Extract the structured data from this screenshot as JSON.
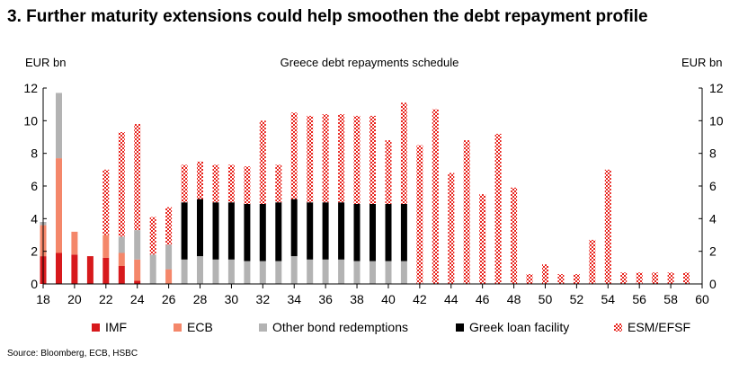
{
  "header": {
    "title": "3. Further maturity extensions could help smoothen the debt repayment profile",
    "subtitle": "Greece debt repayments schedule",
    "unit_left": "EUR bn",
    "unit_right": "EUR bn",
    "source": "Source:  Bloomberg, ECB, HSBC"
  },
  "colors": {
    "imf": "#d7191c",
    "ecb": "#f4876a",
    "other": "#b3b3b3",
    "glf": "#000000",
    "esm": "#e8231c"
  },
  "chart_data": {
    "type": "bar",
    "stacked": true,
    "title": "Greece debt repayments schedule",
    "ylabel": "EUR bn",
    "y2label": "EUR bn",
    "ylim": [
      0,
      12
    ],
    "yticks": [
      0,
      2,
      4,
      6,
      8,
      10,
      12
    ],
    "xlim": [
      18,
      60
    ],
    "xticks": [
      18,
      20,
      22,
      24,
      26,
      28,
      30,
      32,
      34,
      36,
      38,
      40,
      42,
      44,
      46,
      48,
      50,
      52,
      54,
      56,
      58,
      60
    ],
    "categories": [
      18,
      19,
      20,
      21,
      22,
      23,
      24,
      25,
      26,
      27,
      28,
      29,
      30,
      31,
      32,
      33,
      34,
      35,
      36,
      37,
      38,
      39,
      40,
      41,
      42,
      43,
      44,
      45,
      46,
      47,
      48,
      49,
      50,
      51,
      52,
      53,
      54,
      55,
      56,
      57,
      58,
      59
    ],
    "series": [
      {
        "name": "IMF",
        "key": "imf",
        "pattern": "solid",
        "values": [
          1.7,
          1.9,
          1.8,
          1.7,
          1.6,
          1.1,
          0.2,
          0,
          0,
          0,
          0,
          0,
          0,
          0,
          0,
          0,
          0,
          0,
          0,
          0,
          0,
          0,
          0,
          0,
          0,
          0,
          0,
          0,
          0,
          0,
          0,
          0,
          0,
          0,
          0,
          0,
          0,
          0,
          0,
          0,
          0,
          0
        ]
      },
      {
        "name": "ECB",
        "key": "ecb",
        "pattern": "solid",
        "values": [
          1.9,
          5.8,
          1.4,
          0,
          1.4,
          0.8,
          1.3,
          0,
          0.9,
          0,
          0,
          0,
          0,
          0,
          0,
          0,
          0,
          0,
          0,
          0,
          0,
          0,
          0,
          0,
          0,
          0,
          0,
          0,
          0,
          0,
          0,
          0,
          0,
          0,
          0,
          0,
          0,
          0,
          0,
          0,
          0,
          0
        ]
      },
      {
        "name": "Other bond redemptions",
        "key": "other",
        "pattern": "solid",
        "values": [
          0.2,
          4.0,
          0,
          0,
          0,
          1.0,
          1.8,
          1.8,
          1.5,
          1.5,
          1.7,
          1.5,
          1.5,
          1.4,
          1.4,
          1.4,
          1.7,
          1.5,
          1.5,
          1.5,
          1.4,
          1.4,
          1.4,
          1.4,
          0,
          0,
          0,
          0,
          0,
          0,
          0,
          0,
          0,
          0,
          0,
          0,
          0,
          0,
          0,
          0,
          0,
          0
        ]
      },
      {
        "name": "Greek loan facility",
        "key": "glf",
        "pattern": "solid",
        "values": [
          0,
          0,
          0,
          0,
          0,
          0,
          0,
          0,
          0,
          3.5,
          3.5,
          3.5,
          3.5,
          3.5,
          3.5,
          3.6,
          3.5,
          3.5,
          3.5,
          3.5,
          3.5,
          3.5,
          3.5,
          3.5,
          0,
          0,
          0,
          0,
          0,
          0,
          0,
          0,
          0,
          0,
          0,
          0,
          0,
          0,
          0,
          0,
          0,
          0
        ]
      },
      {
        "name": "ESM/EFSF",
        "key": "esm",
        "pattern": "checker",
        "values": [
          0,
          0,
          0,
          0,
          4.0,
          6.4,
          6.5,
          2.3,
          2.3,
          2.3,
          2.3,
          2.3,
          2.3,
          2.3,
          5.1,
          2.3,
          5.3,
          5.3,
          5.4,
          5.4,
          5.4,
          5.4,
          3.9,
          6.2,
          8.5,
          10.7,
          6.8,
          8.8,
          5.5,
          9.2,
          5.9,
          0.6,
          1.2,
          0.6,
          0.6,
          2.7,
          7.0,
          0.7,
          0.7,
          0.7,
          0.7,
          0.7
        ]
      }
    ],
    "legend": {
      "position": "bottom",
      "items": [
        "IMF",
        "ECB",
        "Other bond redemptions",
        "Greek loan facility",
        "ESM/EFSF"
      ]
    }
  }
}
